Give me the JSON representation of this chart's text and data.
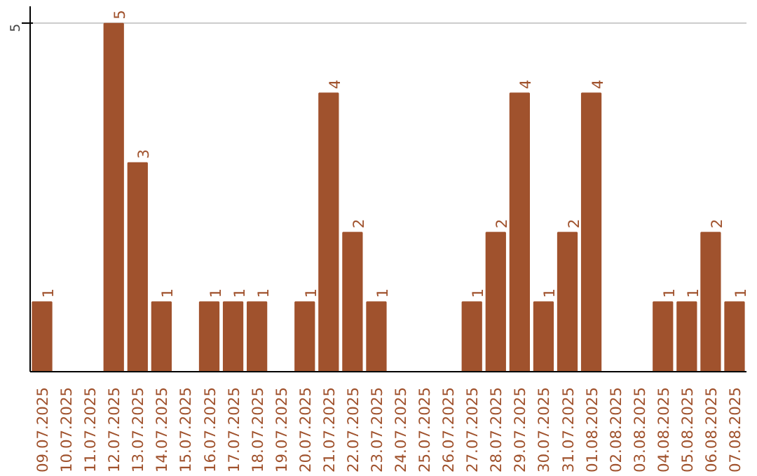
{
  "chart_data": {
    "type": "bar",
    "categories": [
      "09.07.2025",
      "10.07.2025",
      "11.07.2025",
      "12.07.2025",
      "13.07.2025",
      "14.07.2025",
      "15.07.2025",
      "16.07.2025",
      "17.07.2025",
      "18.07.2025",
      "19.07.2025",
      "20.07.2025",
      "21.07.2025",
      "22.07.2025",
      "23.07.2025",
      "24.07.2025",
      "25.07.2025",
      "26.07.2025",
      "27.07.2025",
      "28.07.2025",
      "29.07.2025",
      "30.07.2025",
      "31.07.2025",
      "01.08.2025",
      "02.08.2025",
      "03.08.2025",
      "04.08.2025",
      "05.08.2025",
      "06.08.2025",
      "07.08.2025"
    ],
    "values": [
      1,
      0,
      0,
      5,
      3,
      1,
      0,
      1,
      1,
      1,
      0,
      1,
      4,
      2,
      1,
      0,
      0,
      0,
      1,
      2,
      4,
      1,
      2,
      4,
      0,
      0,
      1,
      1,
      2,
      1
    ],
    "value_labels": [
      "1",
      null,
      null,
      "5",
      "3",
      "1",
      null,
      "1",
      "1",
      "1",
      null,
      "1",
      "4",
      "2",
      "1",
      null,
      null,
      null,
      "1",
      "2",
      "4",
      "1",
      "2",
      "4",
      null,
      null,
      "1",
      "1",
      "2",
      "1"
    ],
    "color": "#a0522d",
    "ylim": [
      0,
      5.25
    ],
    "yticks": [
      5
    ],
    "grid": "y"
  }
}
